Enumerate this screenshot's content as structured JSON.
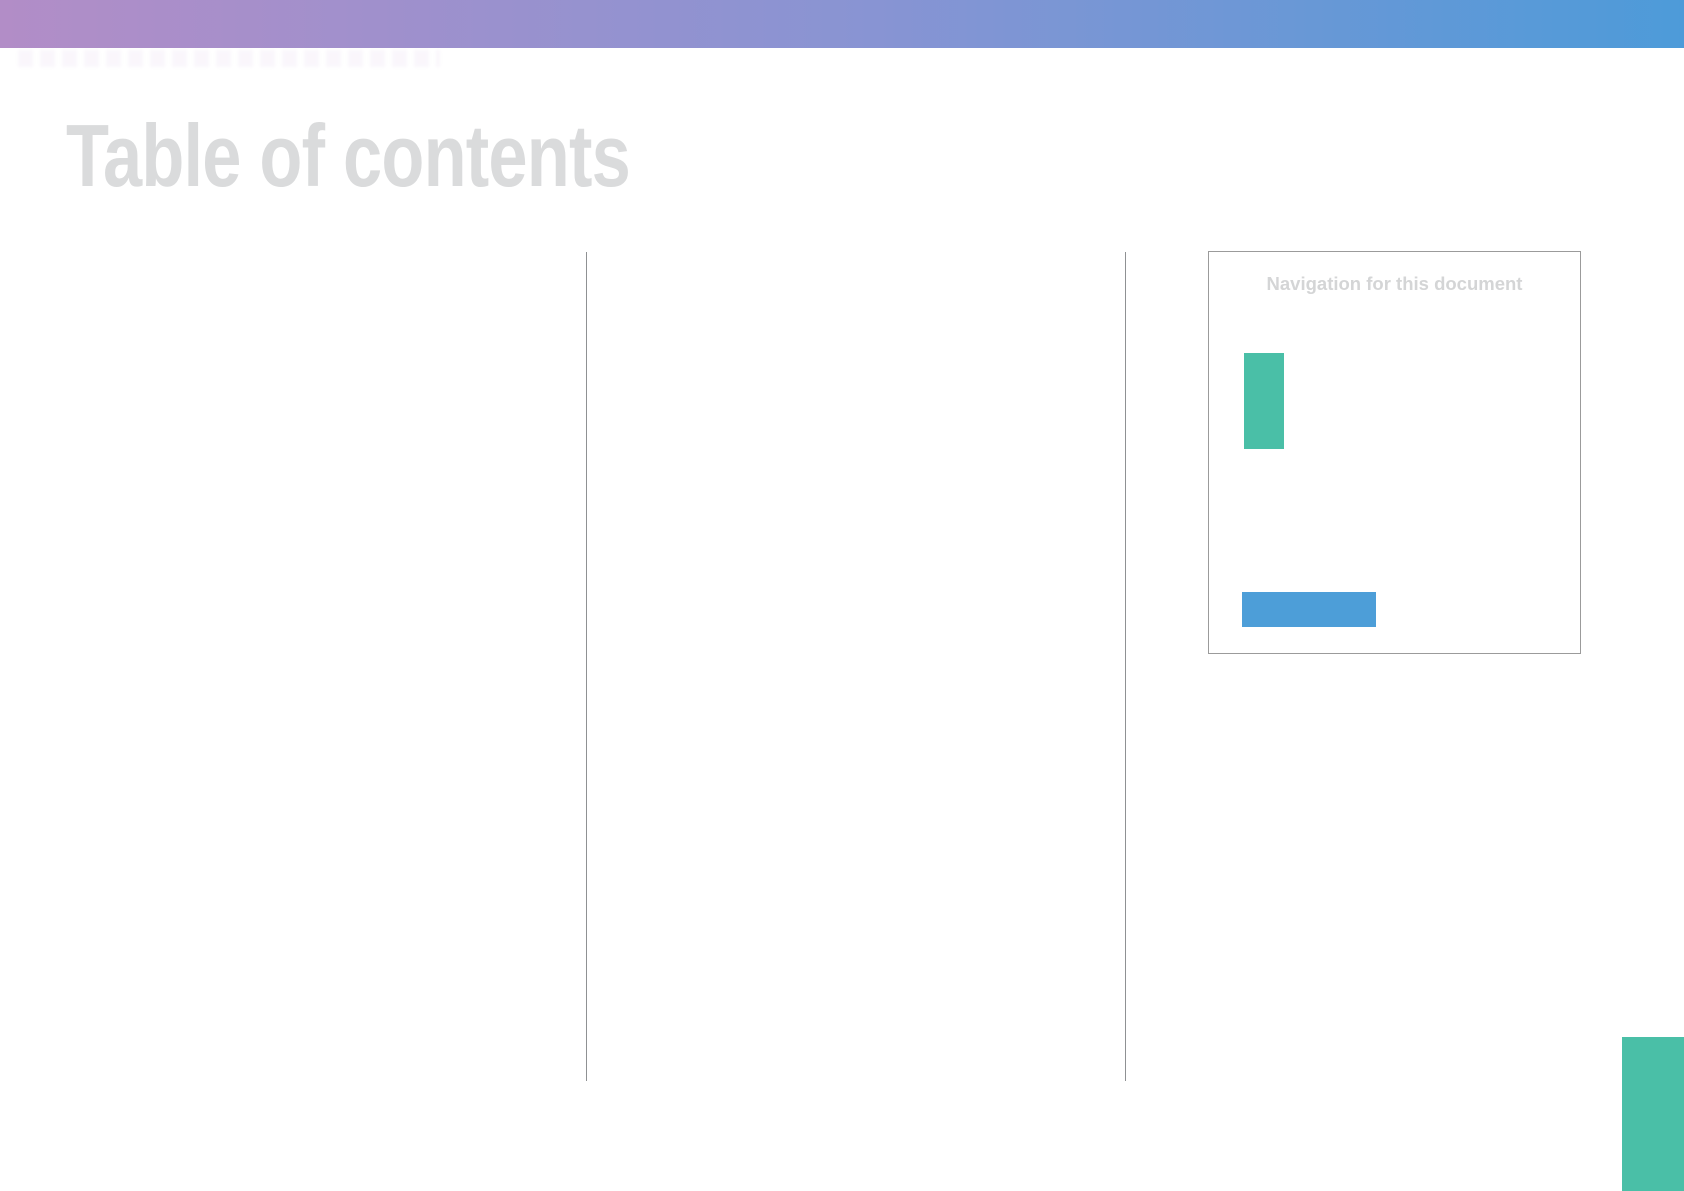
{
  "header": {
    "gradient": {
      "left": "#b28dc7",
      "mid": "#8894d3",
      "right": "#4d9bd9"
    }
  },
  "page": {
    "title": "Table of contents",
    "title_color": "#dadbdc"
  },
  "nav_box": {
    "title": "Navigation for this document",
    "title_color": "#d4d5d6",
    "border_color": "#9b9b9b",
    "markers": {
      "teal": "#4abfa7",
      "blue": "#4d9ed8"
    }
  },
  "layout_marks": {
    "divider_color": "#8f9193",
    "edge_tab_color": "#4abfa7"
  }
}
